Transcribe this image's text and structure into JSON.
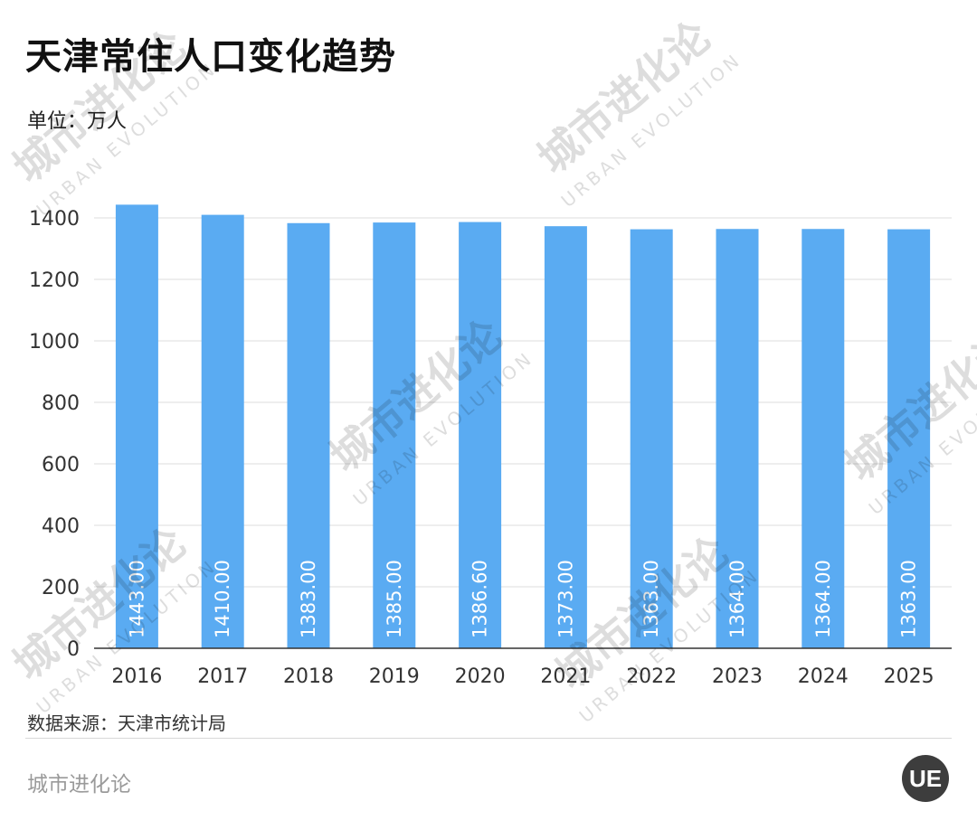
{
  "title": "天津常住人口变化趋势",
  "unit_label": "单位：万人",
  "source": "数据来源：天津市统计局",
  "brand": "城市进化论",
  "logo_text": "UE",
  "watermark": {
    "text_cn": "城市进化论",
    "text_en": "URBAN EVOLUTION"
  },
  "colors": {
    "bar": "#5aabf2",
    "grid": "#dddddd",
    "axis": "#333333",
    "label": "#ffffff",
    "tick": "#333333"
  },
  "chart_data": {
    "type": "bar",
    "categories": [
      "2016",
      "2017",
      "2018",
      "2019",
      "2020",
      "2021",
      "2022",
      "2023",
      "2024",
      "2025"
    ],
    "series": [
      {
        "values": [
          1443.0,
          1410.0,
          1383.0,
          1385.0,
          1386.6,
          1373.0,
          1363.0,
          1364.0,
          1364.0,
          1363.0
        ]
      }
    ],
    "data_labels": [
      "1443.00",
      "1410.00",
      "1383.00",
      "1385.00",
      "1386.60",
      "1373.00",
      "1363.00",
      "1364.00",
      "1364.00",
      "1363.00"
    ],
    "title": "天津常住人口变化趋势",
    "xlabel": "",
    "ylabel": "",
    "ylim": [
      0,
      1400
    ],
    "yticks": [
      0,
      200,
      400,
      600,
      800,
      1000,
      1200,
      1400
    ],
    "grid": true,
    "legend": "none"
  }
}
